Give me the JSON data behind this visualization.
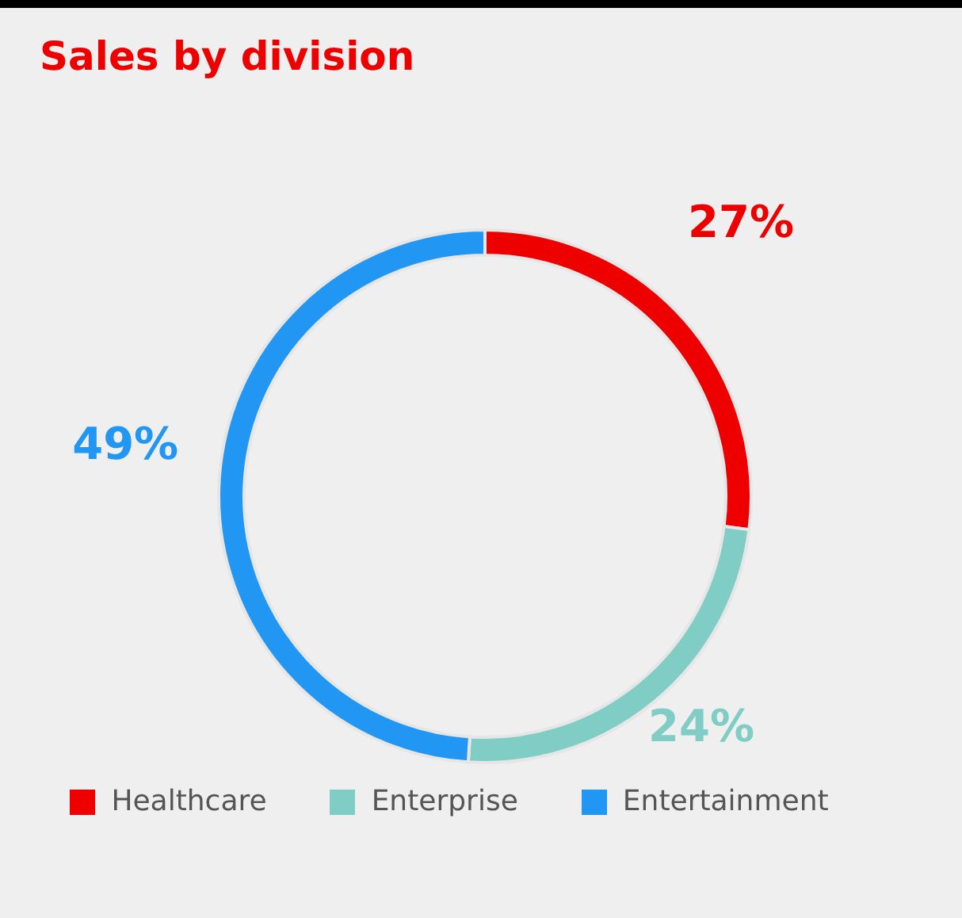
{
  "chart_data": {
    "type": "donut",
    "title": "Sales by division",
    "categories": [
      "Healthcare",
      "Enterprise",
      "Entertainment"
    ],
    "values": [
      27,
      24,
      49
    ],
    "colors": [
      "#ee0000",
      "#80cdc5",
      "#2196f3"
    ],
    "value_labels": [
      "27%",
      "24%",
      "49%"
    ],
    "legend": "bottom"
  }
}
